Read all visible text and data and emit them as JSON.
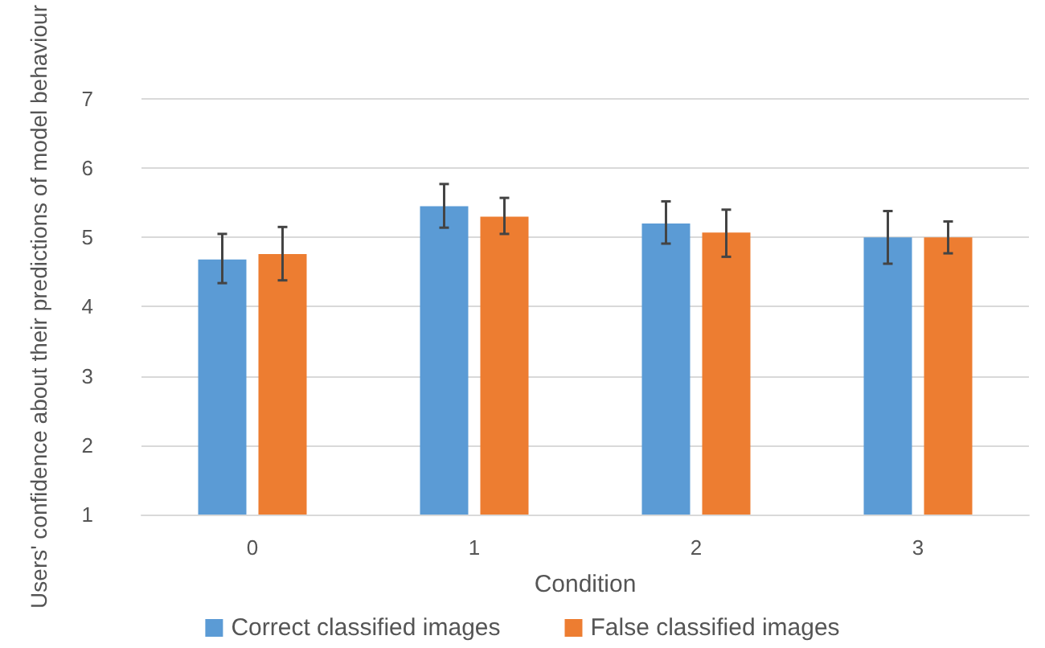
{
  "chart_data": {
    "type": "bar",
    "xlabel": "Condition",
    "ylabel": "Users' confidence about their predictions of model behaviour",
    "categories": [
      "0",
      "1",
      "2",
      "3"
    ],
    "series": [
      {
        "name": "Correct classified images",
        "color": "#5b9bd5",
        "values": [
          4.68,
          5.45,
          5.2,
          5.0
        ],
        "errors": [
          [
            4.34,
            5.05
          ],
          [
            5.14,
            5.77
          ],
          [
            4.91,
            5.52
          ],
          [
            4.62,
            5.38
          ]
        ]
      },
      {
        "name": "False classified images",
        "color": "#ed7d31",
        "values": [
          4.76,
          5.3,
          5.07,
          5.0
        ],
        "errors": [
          [
            4.38,
            5.15
          ],
          [
            5.05,
            5.57
          ],
          [
            4.72,
            5.4
          ],
          [
            4.77,
            5.23
          ]
        ]
      }
    ],
    "ylim": [
      1,
      7
    ],
    "yticks": [
      1,
      2,
      3,
      4,
      5,
      6,
      7
    ],
    "grid": "y",
    "legend": "bottom"
  }
}
